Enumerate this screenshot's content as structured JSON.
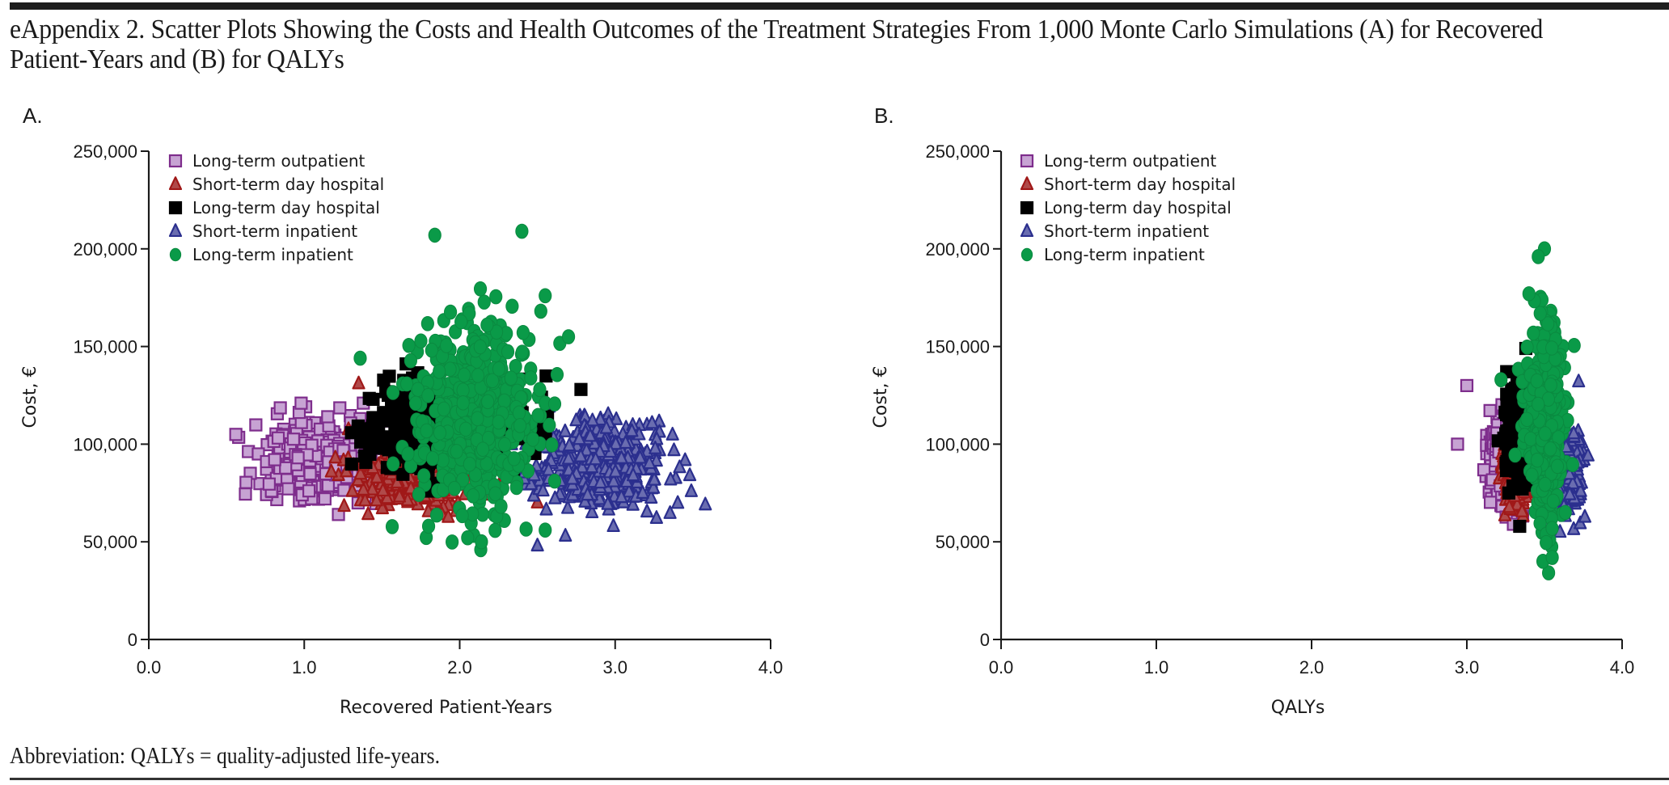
{
  "figure": {
    "title": "eAppendix 2. Scatter Plots Showing the Costs and Health Outcomes of the Treatment Strategies From 1,000 Monte Carlo Simulations (A) for Recovered Patient-Years and (B) for QALYs",
    "footnote": "Abbreviation: QALYs = quality-adjusted life-years."
  },
  "chart_data": [
    {
      "id": "A",
      "panel_label": "A.",
      "type": "scatter",
      "title": "",
      "xlabel": "Recovered Patient-Years",
      "ylabel": "Cost, €",
      "xlim": [
        0,
        4
      ],
      "ylim": [
        0,
        250000
      ],
      "x_ticks": [
        "0.0",
        "1.0",
        "2.0",
        "3.0",
        "4.0"
      ],
      "y_ticks": [
        "0",
        "50,000",
        "100,000",
        "150,000",
        "200,000",
        "250,000"
      ],
      "grid": false,
      "legend_position": "top-left",
      "simulations_per_series": 1000,
      "series": [
        {
          "name": "Long-term outpatient",
          "marker": "square",
          "fill": "#c7a3d3",
          "stroke": "#7e2d8c",
          "x_mean": 1.15,
          "x_sd": 0.2,
          "y_mean": 92000,
          "y_sd": 11000,
          "outliers": [
            [
              0.56,
              105000
            ],
            [
              0.98,
              121000
            ],
            [
              1.22,
              64000
            ],
            [
              1.38,
              121000
            ]
          ]
        },
        {
          "name": "Short-term day hospital",
          "marker": "triangle",
          "fill": "#b04a4a",
          "stroke": "#a01818",
          "x_mean": 1.75,
          "x_sd": 0.2,
          "y_mean": 86000,
          "y_sd": 10000,
          "outliers": [
            [
              1.35,
              131000
            ],
            [
              1.2,
              93000
            ],
            [
              2.5,
              70000
            ]
          ]
        },
        {
          "name": "Long-term day hospital",
          "marker": "square",
          "fill": "#000000",
          "stroke": "#000000",
          "x_mean": 1.9,
          "x_sd": 0.25,
          "y_mean": 108000,
          "y_sd": 14000,
          "outliers": [
            [
              1.54,
              125000
            ],
            [
              1.63,
              107000
            ],
            [
              2.78,
              128000
            ]
          ]
        },
        {
          "name": "Short-term inpatient",
          "marker": "triangle",
          "fill": "#6a6db0",
          "stroke": "#2b2f8e",
          "x_mean": 2.9,
          "x_sd": 0.22,
          "y_mean": 88000,
          "y_sd": 13000,
          "outliers": [
            [
              3.58,
              69000
            ],
            [
              2.5,
              48000
            ],
            [
              2.68,
              53000
            ],
            [
              3.48,
              84000
            ]
          ]
        },
        {
          "name": "Long-term inpatient",
          "marker": "circle",
          "fill": "#0a9a48",
          "stroke": "#0a8a40",
          "x_mean": 2.1,
          "x_sd": 0.22,
          "y_mean": 115000,
          "y_sd": 24000,
          "outliers": [
            [
              1.84,
              207000
            ],
            [
              2.4,
              209000
            ],
            [
              1.36,
              144000
            ],
            [
              2.14,
              50000
            ],
            [
              1.8,
              58000
            ],
            [
              2.55,
              56000
            ],
            [
              2.7,
              155000
            ],
            [
              2.55,
              176000
            ]
          ]
        }
      ]
    },
    {
      "id": "B",
      "panel_label": "B.",
      "type": "scatter",
      "title": "",
      "xlabel": "QALYs",
      "ylabel": "Cost, €",
      "xlim": [
        0,
        4
      ],
      "ylim": [
        0,
        250000
      ],
      "x_ticks": [
        "0.0",
        "1.0",
        "2.0",
        "3.0",
        "4.0"
      ],
      "y_ticks": [
        "0",
        "50,000",
        "100,000",
        "150,000",
        "200,000",
        "250,000"
      ],
      "grid": false,
      "legend_position": "top-left",
      "simulations_per_series": 1000,
      "series": [
        {
          "name": "Long-term outpatient",
          "marker": "square",
          "fill": "#c7a3d3",
          "stroke": "#7e2d8c",
          "x_mean": 3.25,
          "x_sd": 0.05,
          "y_mean": 92000,
          "y_sd": 12000,
          "outliers": [
            [
              2.94,
              100000
            ],
            [
              3.0,
              130000
            ],
            [
              3.3,
              59000
            ],
            [
              3.29,
              137000
            ]
          ]
        },
        {
          "name": "Short-term day hospital",
          "marker": "triangle",
          "fill": "#b04a4a",
          "stroke": "#a01818",
          "x_mean": 3.32,
          "x_sd": 0.04,
          "y_mean": 86000,
          "y_sd": 9000,
          "outliers": [
            [
              3.26,
              110000
            ]
          ]
        },
        {
          "name": "Long-term day hospital",
          "marker": "square",
          "fill": "#000000",
          "stroke": "#000000",
          "x_mean": 3.35,
          "x_sd": 0.05,
          "y_mean": 108000,
          "y_sd": 14000,
          "outliers": [
            [
              3.38,
              149000
            ]
          ]
        },
        {
          "name": "Short-term inpatient",
          "marker": "triangle",
          "fill": "#6a6db0",
          "stroke": "#2b2f8e",
          "x_mean": 3.62,
          "x_sd": 0.06,
          "y_mean": 86000,
          "y_sd": 12000,
          "outliers": [
            [
              3.72,
              132000
            ],
            [
              3.6,
              55000
            ]
          ]
        },
        {
          "name": "Long-term inpatient",
          "marker": "circle",
          "fill": "#0a9a48",
          "stroke": "#0a8a40",
          "x_mean": 3.5,
          "x_sd": 0.06,
          "y_mean": 112000,
          "y_sd": 25000,
          "outliers": [
            [
              3.5,
              200000
            ],
            [
              3.46,
              196000
            ],
            [
              3.4,
              177000
            ],
            [
              3.49,
              40000
            ],
            [
              3.55,
              42000
            ],
            [
              3.22,
              133000
            ]
          ]
        }
      ]
    }
  ]
}
